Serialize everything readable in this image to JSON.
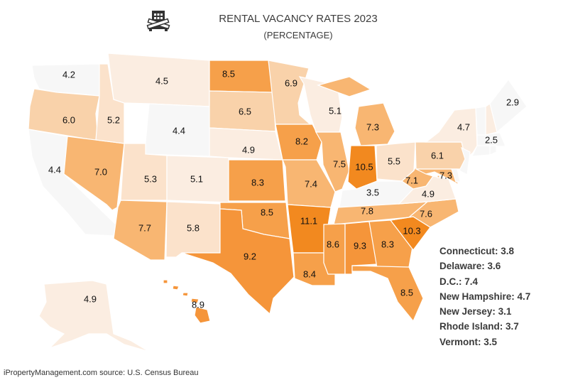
{
  "title": "RENTAL VACANCY RATES 2023",
  "subtitle": "(PERCENTAGE)",
  "logo_icon": "building-barricade-icon",
  "footer": "iPropertyManagement.com source: U.S. Census Bureau",
  "color_scale": {
    "low": "#f7f7f7",
    "high": "#f2891f"
  },
  "states": [
    {
      "abbr": "WA",
      "name": "Washington",
      "value": "4.2"
    },
    {
      "abbr": "OR",
      "name": "Oregon",
      "value": "6.0"
    },
    {
      "abbr": "CA",
      "name": "California",
      "value": "4.4"
    },
    {
      "abbr": "NV",
      "name": "Nevada",
      "value": "7.0"
    },
    {
      "abbr": "ID",
      "name": "Idaho",
      "value": "5.2"
    },
    {
      "abbr": "MT",
      "name": "Montana",
      "value": "4.5"
    },
    {
      "abbr": "WY",
      "name": "Wyoming",
      "value": "4.4"
    },
    {
      "abbr": "UT",
      "name": "Utah",
      "value": "5.3"
    },
    {
      "abbr": "CO",
      "name": "Colorado",
      "value": "5.1"
    },
    {
      "abbr": "AZ",
      "name": "Arizona",
      "value": "7.7"
    },
    {
      "abbr": "NM",
      "name": "New Mexico",
      "value": "5.8"
    },
    {
      "abbr": "ND",
      "name": "North Dakota",
      "value": "8.5"
    },
    {
      "abbr": "SD",
      "name": "South Dakota",
      "value": "6.5"
    },
    {
      "abbr": "NE",
      "name": "Nebraska",
      "value": "4.9"
    },
    {
      "abbr": "KS",
      "name": "Kansas",
      "value": "8.3"
    },
    {
      "abbr": "OK",
      "name": "Oklahoma",
      "value": "8.5"
    },
    {
      "abbr": "TX",
      "name": "Texas",
      "value": "9.2"
    },
    {
      "abbr": "MN",
      "name": "Minnesota",
      "value": "6.9"
    },
    {
      "abbr": "IA",
      "name": "Iowa",
      "value": "8.2"
    },
    {
      "abbr": "MO",
      "name": "Missouri",
      "value": "7.4"
    },
    {
      "abbr": "AR",
      "name": "Arkansas",
      "value": "11.1"
    },
    {
      "abbr": "LA",
      "name": "Louisiana",
      "value": "8.4"
    },
    {
      "abbr": "WI",
      "name": "Wisconsin",
      "value": "5.1"
    },
    {
      "abbr": "IL",
      "name": "Illinois",
      "value": "7.5"
    },
    {
      "abbr": "MI",
      "name": "Michigan",
      "value": "7.3"
    },
    {
      "abbr": "IN",
      "name": "Indiana",
      "value": "10.5"
    },
    {
      "abbr": "OH",
      "name": "Ohio",
      "value": "5.5"
    },
    {
      "abbr": "KY",
      "name": "Kentucky",
      "value": "3.5"
    },
    {
      "abbr": "TN",
      "name": "Tennessee",
      "value": "7.8"
    },
    {
      "abbr": "MS",
      "name": "Mississippi",
      "value": "8.6"
    },
    {
      "abbr": "AL",
      "name": "Alabama",
      "value": "9.3"
    },
    {
      "abbr": "GA",
      "name": "Georgia",
      "value": "8.3"
    },
    {
      "abbr": "FL",
      "name": "Florida",
      "value": "8.5"
    },
    {
      "abbr": "SC",
      "name": "South Carolina",
      "value": "10.3"
    },
    {
      "abbr": "NC",
      "name": "North Carolina",
      "value": "7.6"
    },
    {
      "abbr": "VA",
      "name": "Virginia",
      "value": "4.9"
    },
    {
      "abbr": "WV",
      "name": "West Virginia",
      "value": "7.1"
    },
    {
      "abbr": "PA",
      "name": "Pennsylvania",
      "value": "6.1"
    },
    {
      "abbr": "NY",
      "name": "New York",
      "value": "4.7"
    },
    {
      "abbr": "MD",
      "name": "Maryland",
      "value": "7.3"
    },
    {
      "abbr": "ME",
      "name": "Maine",
      "value": "2.9"
    },
    {
      "abbr": "MA",
      "name": "Massachusetts",
      "value": "2.5"
    },
    {
      "abbr": "AK",
      "name": "Alaska",
      "value": "4.9"
    },
    {
      "abbr": "HI",
      "name": "Hawaii",
      "value": "8.9"
    },
    {
      "abbr": "CT",
      "name": "Connecticut",
      "value": "3.8",
      "callout": true
    },
    {
      "abbr": "DE",
      "name": "Delaware",
      "value": "3.6",
      "callout": true
    },
    {
      "abbr": "DC",
      "name": "D.C.",
      "value": "7.4",
      "callout": true
    },
    {
      "abbr": "NH",
      "name": "New Hampshire",
      "value": "4.7",
      "callout": true
    },
    {
      "abbr": "NJ",
      "name": "New Jersey",
      "value": "3.1",
      "callout": true
    },
    {
      "abbr": "RI",
      "name": "Rhode Island",
      "value": "3.7",
      "callout": true
    },
    {
      "abbr": "VT",
      "name": "Vermont",
      "value": "3.5",
      "callout": true
    }
  ]
}
